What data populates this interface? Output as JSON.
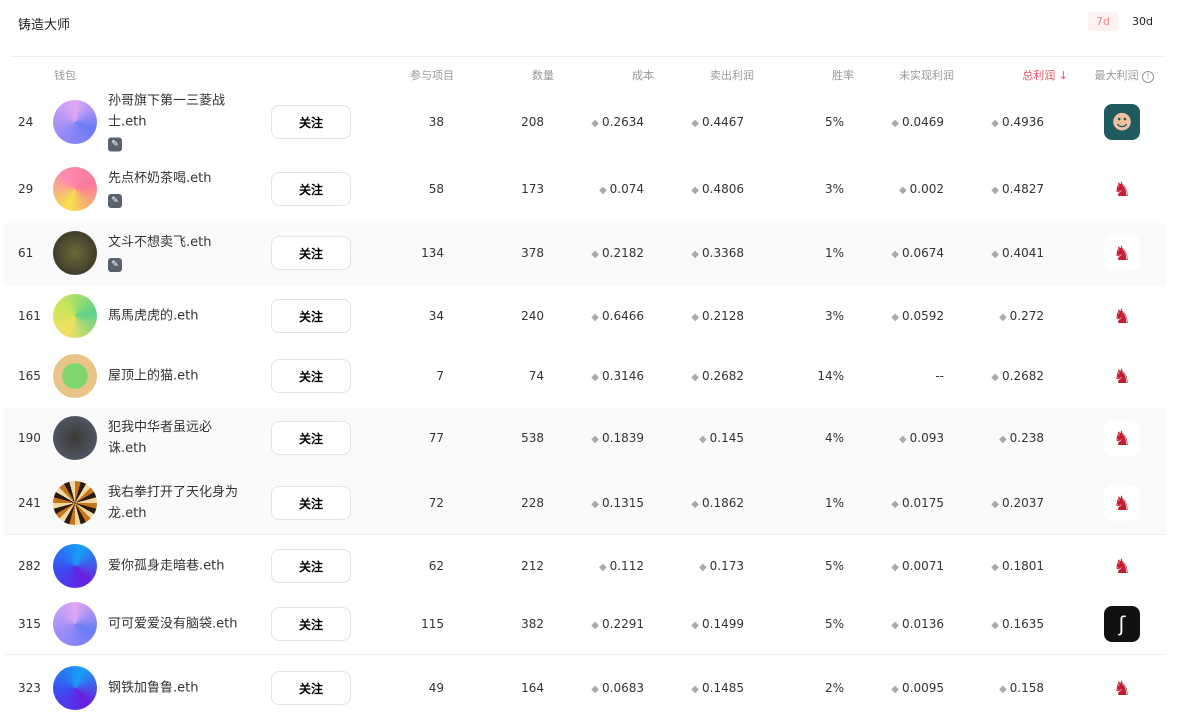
{
  "title": "铸造大师",
  "periods": [
    "7d",
    "30d"
  ],
  "headers": {
    "wallet": "钱包",
    "projects": "参与项目",
    "quantity": "数量",
    "cost": "成本",
    "sell_profit": "卖出利润",
    "win_rate": "胜率",
    "unrealized": "未实现利润",
    "total_profit": "总利润",
    "total_sort_icon": "arrow-down-icon",
    "max_profit": "最大利润",
    "info_icon": "info-icon"
  },
  "colors": {
    "accent": "#e0505e"
  },
  "follow_label": "关注",
  "rows": [
    {
      "rank": "24",
      "name": "孙哥旗下第一三菱战士.eth",
      "badge": true,
      "projects": "38",
      "quantity": "208",
      "cost": "0.2634",
      "sell": "0.4467",
      "win": "5%",
      "unrealized": "0.0469",
      "total": "0.4936",
      "avatar": "conic-gradient(from 110deg,#6a7cf5,#9b8cf5,#e0a8f5 70%,#6a7cf5)",
      "max": "dark"
    },
    {
      "rank": "29",
      "name": "先点杯奶茶喝.eth",
      "badge": true,
      "projects": "58",
      "quantity": "173",
      "cost": "0.074",
      "sell": "0.4806",
      "win": "3%",
      "unrealized": "0.002",
      "total": "0.4827",
      "avatar": "conic-gradient(from 200deg,#f7e14a,#fb8bb0,#fb7b9a,#f7e14a)",
      "max": "cat"
    },
    {
      "rank": "61",
      "name": "文斗不想卖飞.eth",
      "badge": true,
      "projects": "134",
      "quantity": "378",
      "cost": "0.2182",
      "sell": "0.3368",
      "win": "1%",
      "unrealized": "0.0674",
      "total": "0.4041",
      "avatar": "radial-gradient(circle,#6b6a3a,#2e2a24)",
      "max": "cat"
    },
    {
      "rank": "161",
      "name": "馬馬虎虎的.eth",
      "badge": false,
      "projects": "34",
      "quantity": "240",
      "cost": "0.6466",
      "sell": "0.2128",
      "win": "3%",
      "unrealized": "0.0592",
      "total": "0.272",
      "avatar": "conic-gradient(from 200deg,#f1e060,#c8e55a,#5fd18a,#f1e060)",
      "max": "cat"
    },
    {
      "rank": "165",
      "name": "屋顶上的猫.eth",
      "badge": false,
      "projects": "7",
      "quantity": "74",
      "cost": "0.3146",
      "sell": "0.2682",
      "win": "14%",
      "unrealized": "--",
      "total": "0.2682",
      "avatar": "radial-gradient(circle,#7ed56f 40%,#e8c48a 42%)",
      "max": "cat"
    },
    {
      "rank": "190",
      "name": "犯我中华者虽远必诛.eth",
      "badge": false,
      "projects": "77",
      "quantity": "538",
      "cost": "0.1839",
      "sell": "0.145",
      "win": "4%",
      "unrealized": "0.093",
      "total": "0.238",
      "avatar": "radial-gradient(circle,#3a3a34,#5a6078)",
      "max": "cat"
    },
    {
      "rank": "241",
      "name": "我右拳打开了天化身为龙.eth",
      "badge": false,
      "projects": "72",
      "quantity": "228",
      "cost": "0.1315",
      "sell": "0.1862",
      "win": "1%",
      "unrealized": "0.0175",
      "total": "0.2037",
      "avatar": "repeating-conic-gradient(#c8741c 0 15deg,#2a1a10 15deg 30deg,#f0d8a0 30deg 45deg)",
      "max": "cat"
    },
    {
      "rank": "282",
      "name": "爱你孤身走暗巷.eth",
      "badge": false,
      "projects": "62",
      "quantity": "212",
      "cost": "0.112",
      "sell": "0.173",
      "win": "5%",
      "unrealized": "0.0071",
      "total": "0.1801",
      "avatar": "conic-gradient(from 140deg,#6a1ee0,#3a4df0,#16a0f5,#6a1ee0)",
      "max": "cat"
    },
    {
      "rank": "315",
      "name": "可可爱爱没有脑袋.eth",
      "badge": false,
      "projects": "115",
      "quantity": "382",
      "cost": "0.2291",
      "sell": "0.1499",
      "win": "5%",
      "unrealized": "0.0136",
      "total": "0.1635",
      "avatar": "conic-gradient(from 110deg,#6a7cf5,#9b8cf5,#e0a8f5 70%,#6a7cf5)",
      "max": "swan"
    },
    {
      "rank": "323",
      "name": "钢铁加鲁鲁.eth",
      "badge": false,
      "projects": "49",
      "quantity": "164",
      "cost": "0.0683",
      "sell": "0.1485",
      "win": "2%",
      "unrealized": "0.0095",
      "total": "0.158",
      "avatar": "conic-gradient(from 140deg,#6a1ee0,#3a4df0,#16a0f5,#6a1ee0)",
      "max": "cat"
    }
  ]
}
